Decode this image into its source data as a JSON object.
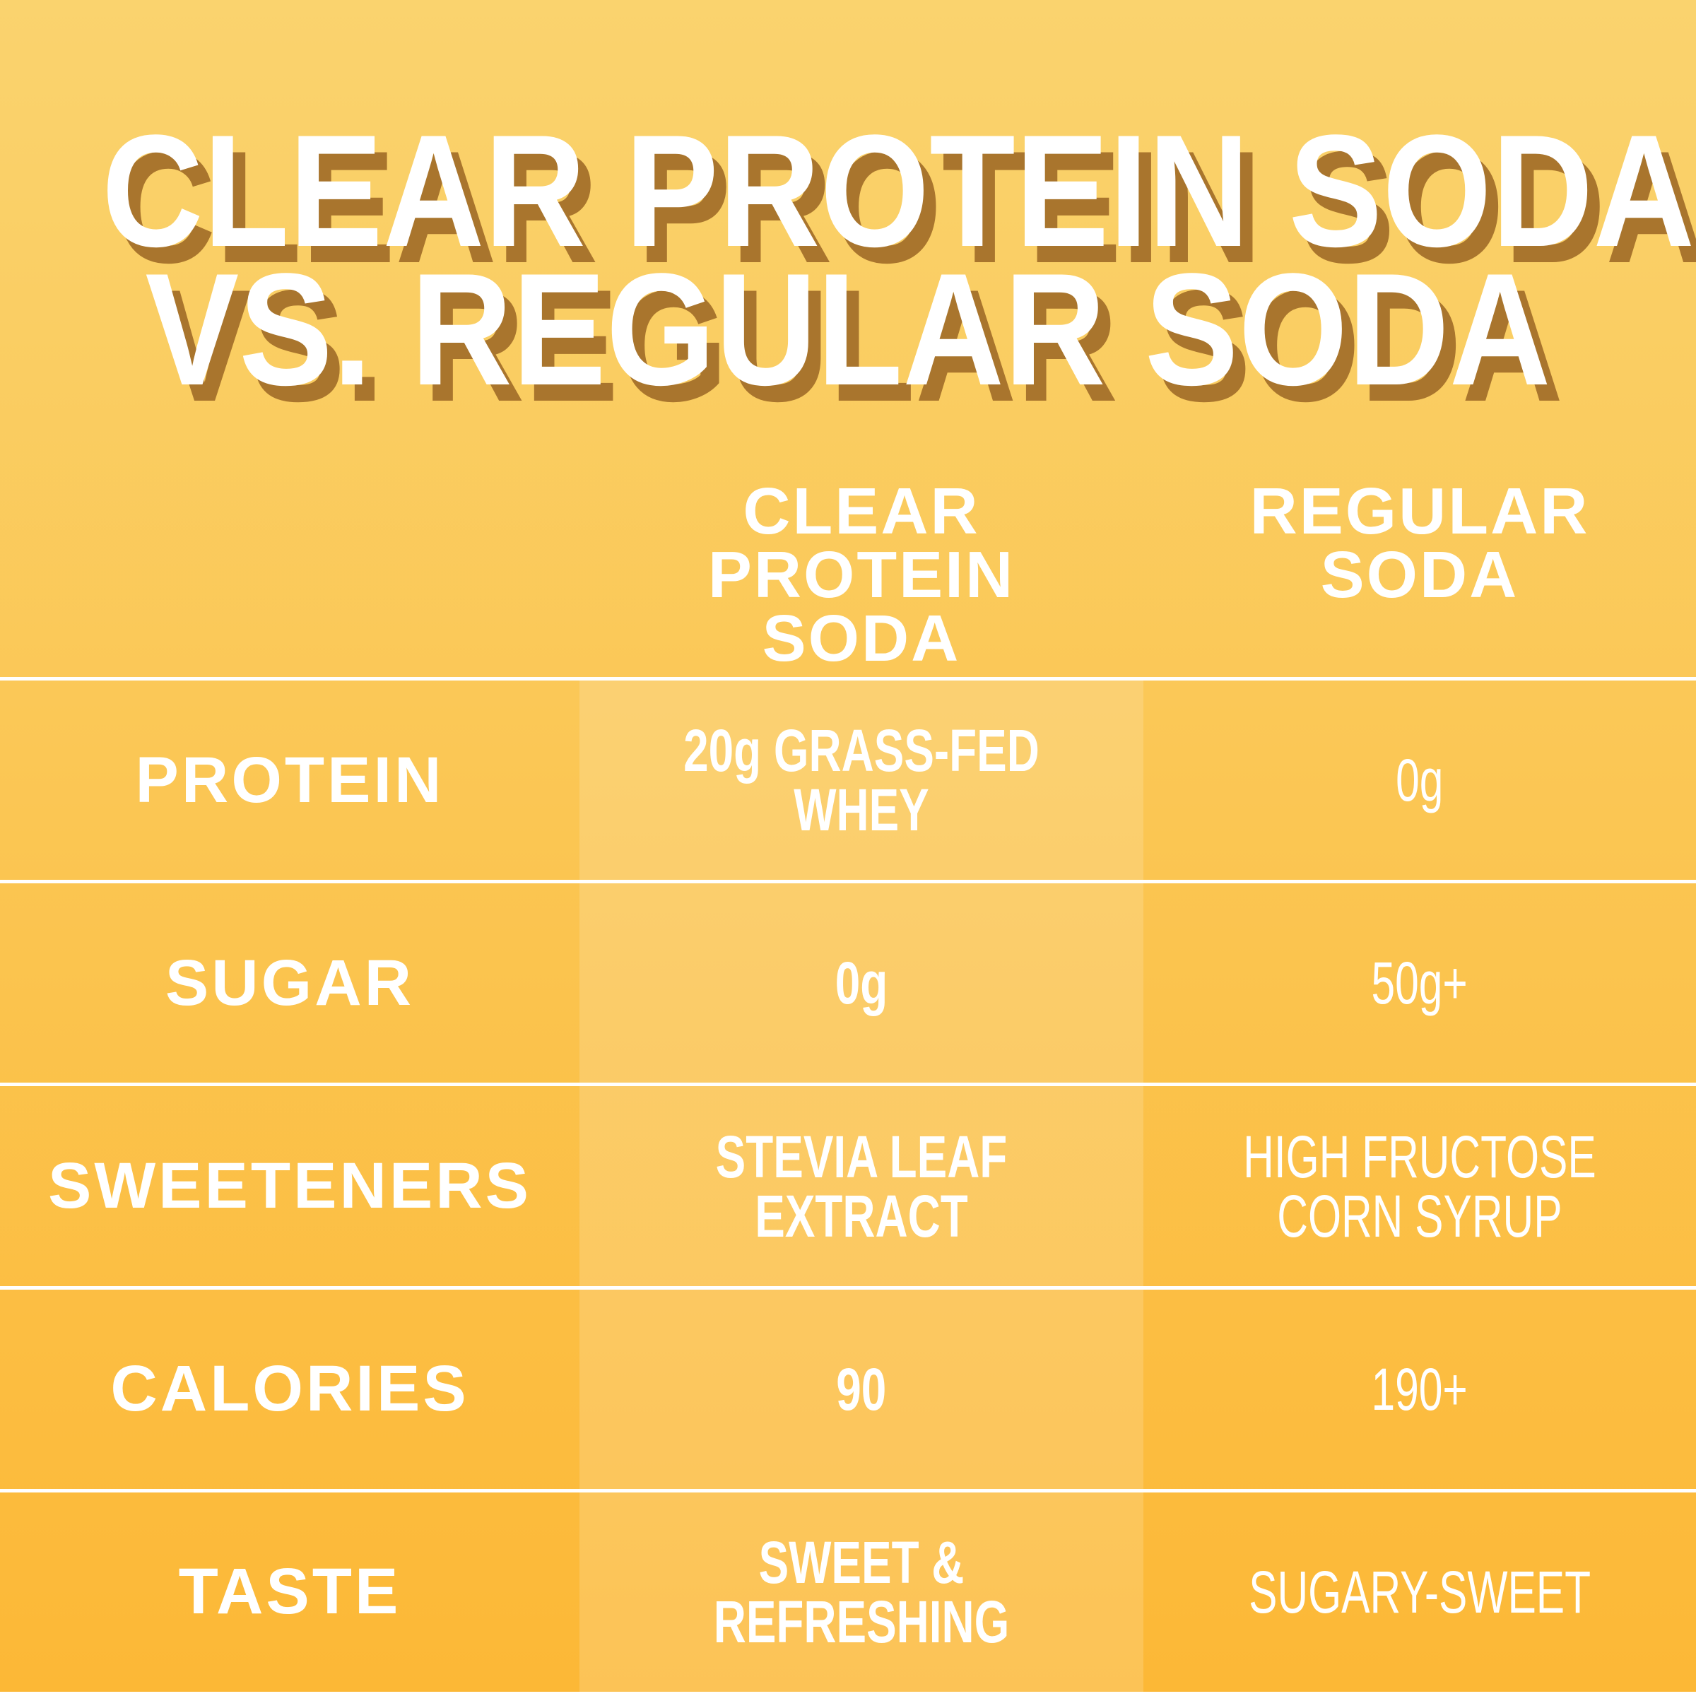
{
  "colors": {
    "background_top": "#FAD36E",
    "background_bottom": "#FCB836",
    "highlight": "rgba(255,255,255,0.16)",
    "line": "#FFFFFF",
    "text": "#FFFFFF",
    "title_shadow": "#A9752D"
  },
  "title": {
    "line1": "CLEAR PROTEIN SODA",
    "line2": "VS. REGULAR SODA"
  },
  "header": {
    "clear_label": "CLEAR PROTEIN\nSODA",
    "regular_label": "REGULAR\nSODA"
  },
  "chart_data": {
    "type": "table",
    "title": "CLEAR PROTEIN SODA VS. REGULAR SODA",
    "columns": [
      "",
      "CLEAR PROTEIN SODA",
      "REGULAR SODA"
    ],
    "rows": [
      {
        "label": "PROTEIN",
        "clear": "20g GRASS-FED WHEY",
        "regular": "0g"
      },
      {
        "label": "SUGAR",
        "clear": "0g",
        "regular": "50g+"
      },
      {
        "label": "SWEETENERS",
        "clear": "STEVIA LEAF EXTRACT",
        "regular": "HIGH FRUCTOSE\nCORN SYRUP"
      },
      {
        "label": "CALORIES",
        "clear": "90",
        "regular": "190+"
      },
      {
        "label": "TASTE",
        "clear": "SWEET & REFRESHING",
        "regular": "SUGARY-SWEET"
      }
    ],
    "layout": {
      "highlighted_column": "CLEAR PROTEIN SODA",
      "grid": "horizontal white rules between rows",
      "background": "yellow-to-orange vertical gradient"
    }
  }
}
